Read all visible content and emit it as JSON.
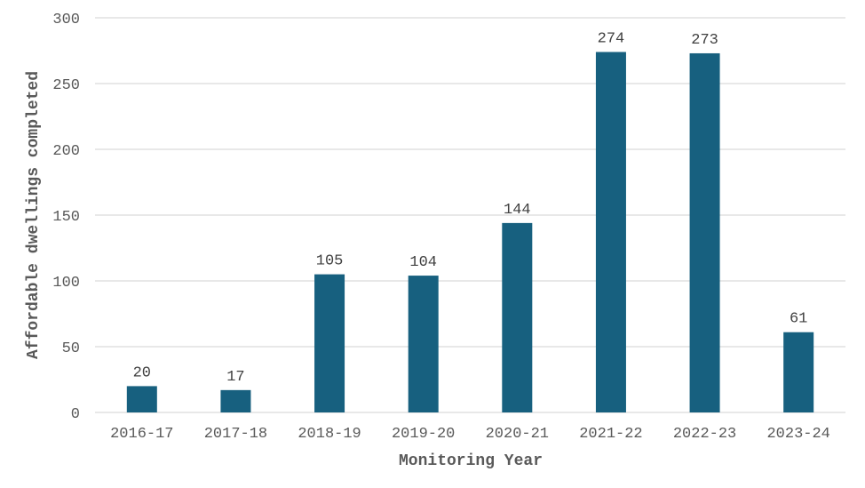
{
  "chart_data": {
    "type": "bar",
    "title": "",
    "xlabel": "Monitoring Year",
    "ylabel": "Affordable dwellings completed",
    "categories": [
      "2016-17",
      "2017-18",
      "2018-19",
      "2019-20",
      "2020-21",
      "2021-22",
      "2022-23",
      "2023-24"
    ],
    "values": [
      20,
      17,
      105,
      104,
      144,
      274,
      273,
      61
    ],
    "data_labels": [
      "20",
      "17",
      "105",
      "104",
      "144",
      "274",
      "273",
      "61"
    ],
    "ylim": [
      0,
      300
    ],
    "yticks": [
      0,
      50,
      100,
      150,
      200,
      250,
      300
    ],
    "ytick_labels": [
      "0",
      "50",
      "100",
      "150",
      "200",
      "250",
      "300"
    ],
    "grid": true,
    "legend": "none",
    "bar_color": "#17607f",
    "grid_color": "#d9d9d9",
    "text_color": "#595959"
  }
}
